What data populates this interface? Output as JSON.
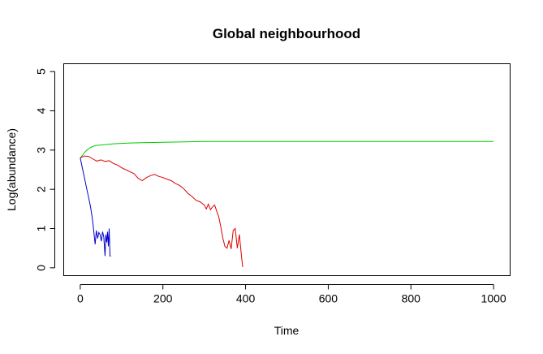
{
  "chart_data": {
    "type": "line",
    "title": "Global neighbourhood",
    "xlabel": "Time",
    "ylabel": "Log(abundance)",
    "xlim": [
      -40,
      1040
    ],
    "ylim": [
      -0.2,
      5.2
    ],
    "xticks": [
      0,
      200,
      400,
      600,
      800,
      1000
    ],
    "yticks": [
      0,
      1,
      2,
      3,
      4,
      5
    ],
    "grid": false,
    "series": [
      {
        "color": "#00cc00",
        "x": [
          0,
          5,
          10,
          15,
          20,
          25,
          30,
          35,
          40,
          50,
          60,
          70,
          80,
          100,
          120,
          150,
          200,
          250,
          300,
          350,
          400,
          500,
          600,
          700,
          800,
          900,
          1000
        ],
        "y": [
          2.8,
          2.86,
          2.93,
          2.99,
          3.03,
          3.07,
          3.09,
          3.11,
          3.12,
          3.13,
          3.14,
          3.15,
          3.16,
          3.17,
          3.18,
          3.19,
          3.2,
          3.21,
          3.22,
          3.22,
          3.22,
          3.22,
          3.22,
          3.22,
          3.22,
          3.22,
          3.22
        ]
      },
      {
        "color": "#dd0000",
        "x": [
          0,
          10,
          20,
          30,
          40,
          50,
          60,
          70,
          80,
          90,
          100,
          110,
          120,
          130,
          140,
          150,
          160,
          170,
          180,
          190,
          200,
          210,
          220,
          230,
          240,
          250,
          260,
          270,
          280,
          290,
          300,
          305,
          310,
          315,
          320,
          325,
          330,
          335,
          340,
          345,
          350,
          355,
          360,
          365,
          370,
          375,
          380,
          385,
          390,
          393
        ],
        "y": [
          2.8,
          2.85,
          2.84,
          2.78,
          2.72,
          2.75,
          2.71,
          2.73,
          2.66,
          2.62,
          2.55,
          2.5,
          2.45,
          2.4,
          2.28,
          2.22,
          2.3,
          2.35,
          2.38,
          2.33,
          2.3,
          2.26,
          2.22,
          2.15,
          2.1,
          2.02,
          1.9,
          1.82,
          1.72,
          1.68,
          1.6,
          1.5,
          1.62,
          1.48,
          1.55,
          1.6,
          1.45,
          1.3,
          1.05,
          0.75,
          0.55,
          0.5,
          0.7,
          0.48,
          0.95,
          1.0,
          0.5,
          0.85,
          0.3,
          0.02
        ]
      },
      {
        "color": "#0000cc",
        "x": [
          0,
          5,
          10,
          15,
          20,
          25,
          30,
          33,
          36,
          39,
          42,
          45,
          48,
          51,
          54,
          57,
          60,
          62,
          64,
          66,
          68,
          70,
          72,
          74
        ],
        "y": [
          2.8,
          2.55,
          2.3,
          2.05,
          1.8,
          1.55,
          1.2,
          0.9,
          0.6,
          0.95,
          0.75,
          0.9,
          0.85,
          0.68,
          0.92,
          0.78,
          0.3,
          0.85,
          0.65,
          0.92,
          0.55,
          1.0,
          0.3,
          0.3
        ]
      }
    ]
  }
}
